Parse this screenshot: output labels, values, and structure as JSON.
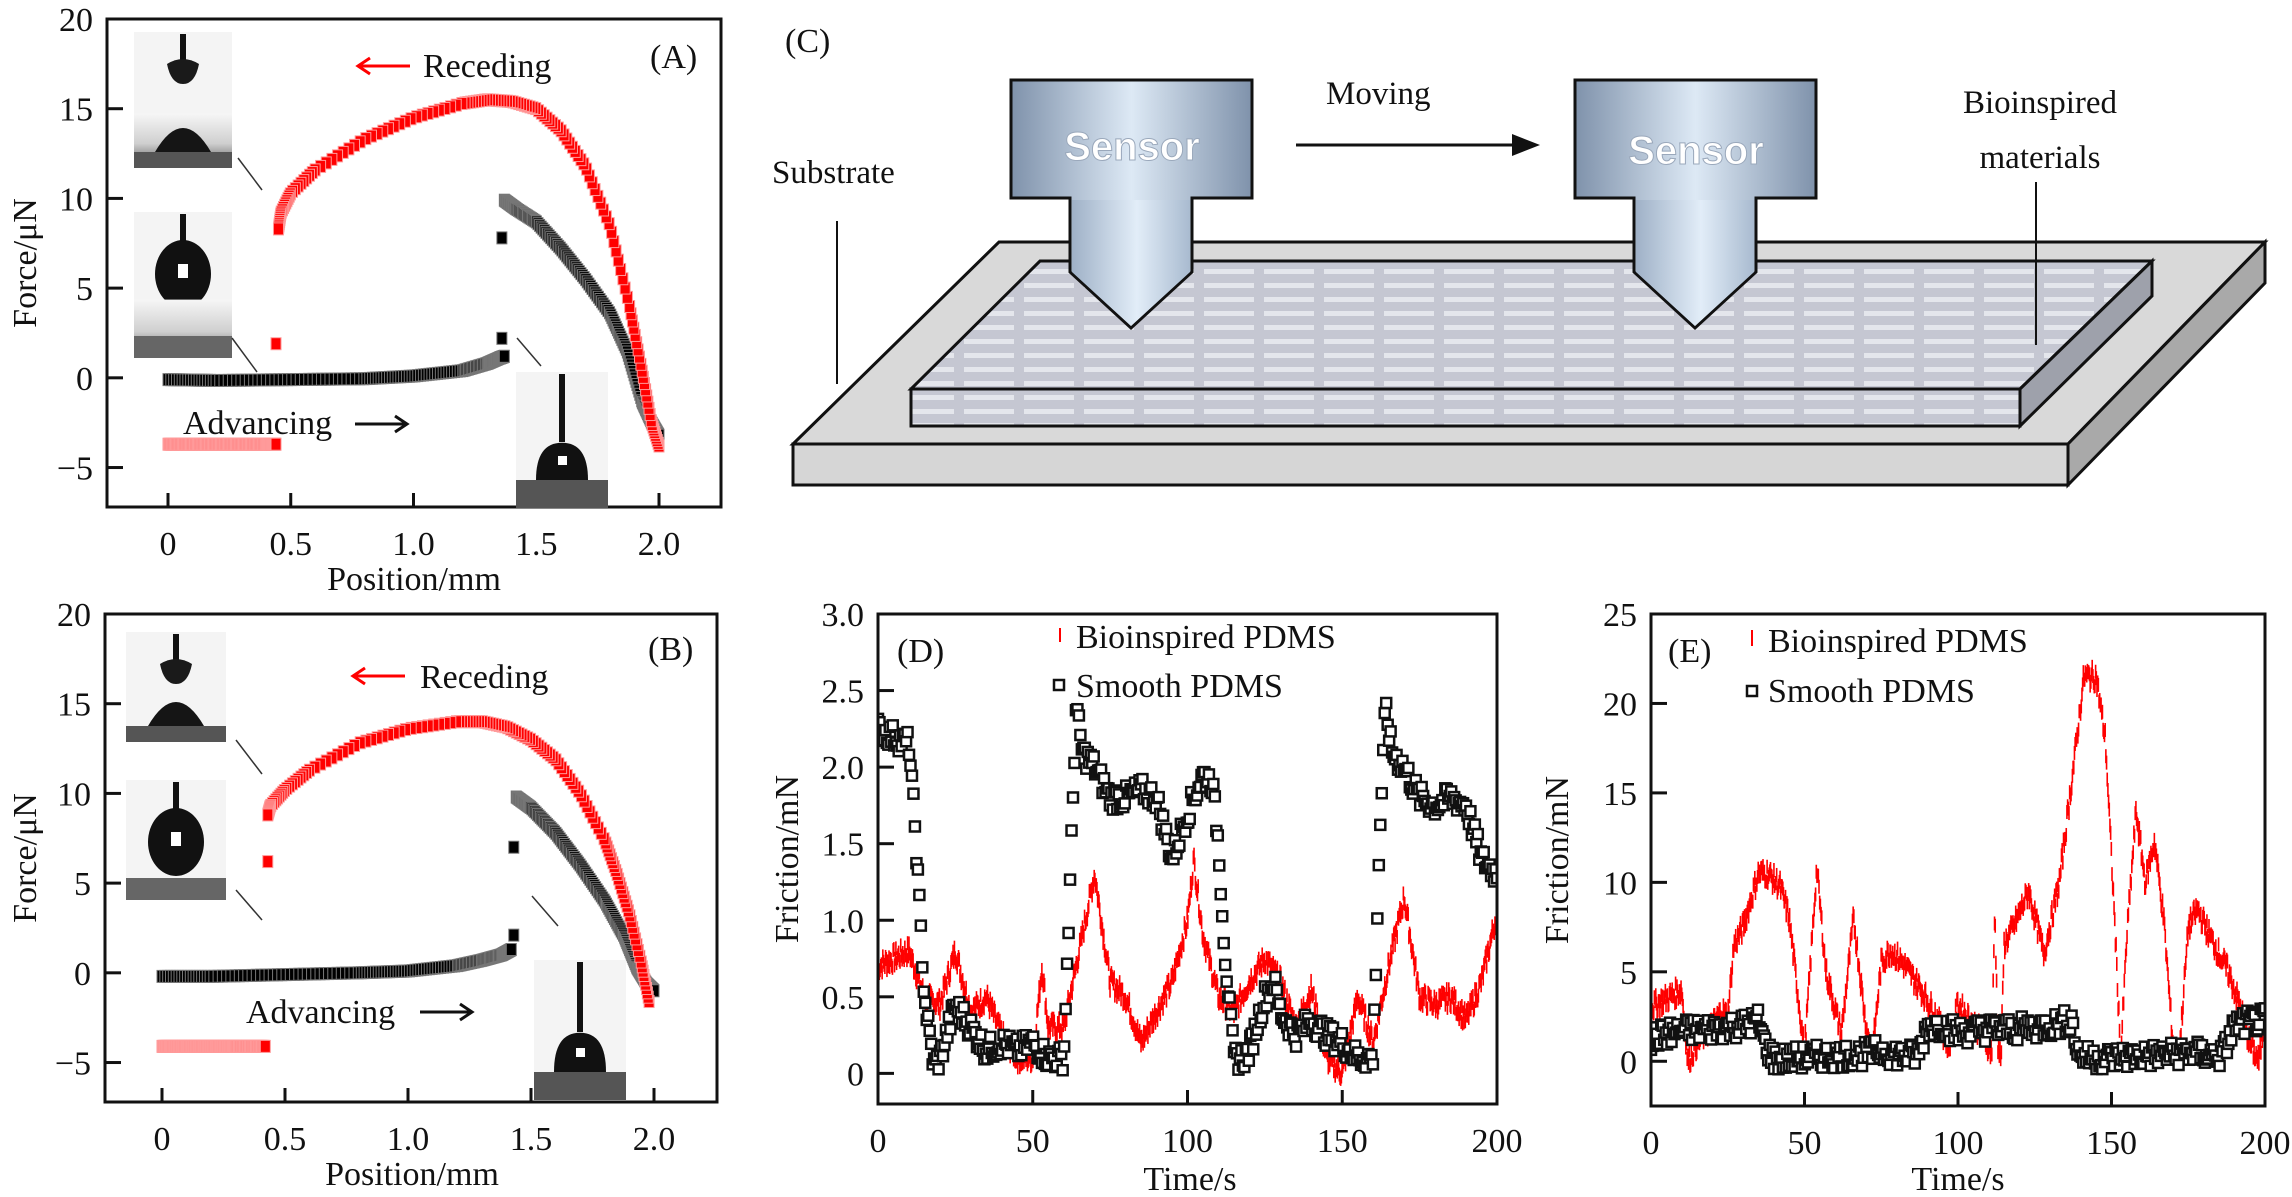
{
  "figure": {
    "panel_labels": {
      "A": "(A)",
      "B": "(B)",
      "C": "(C)",
      "D": "(D)",
      "E": "(E)"
    },
    "diagram_c": {
      "sensor_label": "Sensor",
      "moving_label": "Moving",
      "substrate_label": "Substrate",
      "materials_label_line1": "Bioinspired",
      "materials_label_line2": "materials",
      "colors": {
        "sensor_light": "#dde9f5",
        "sensor_dark": "#7f92ab",
        "substrate": "#d9d9d9",
        "material": "#c9ccd6"
      }
    },
    "colors": {
      "red_series": "#ff0000",
      "black_series": "#000000"
    }
  },
  "chart_data": [
    {
      "id": "A",
      "type": "scatter",
      "title": "(A)",
      "xlabel": "Position/mm",
      "ylabel": "Force/μN",
      "xlim": [
        -0.22,
        2.25
      ],
      "ylim": [
        -7.2,
        20
      ],
      "xticks": [
        "0",
        "0.5",
        "1.0",
        "1.5",
        "2.0"
      ],
      "xtick_values": [
        0,
        0.5,
        1.0,
        1.5,
        2.0
      ],
      "yticks": [
        "−5",
        "0",
        "5",
        "10",
        "15",
        "20"
      ],
      "ytick_values": [
        -5,
        0,
        5,
        10,
        15,
        20
      ],
      "annotations": {
        "receding": "Receding",
        "advancing": "Advancing"
      },
      "series": [
        {
          "name": "Advancing",
          "color": "#000000",
          "x": [
            0,
            0.2,
            0.5,
            0.8,
            1.0,
            1.2,
            1.3,
            1.35,
            1.37
          ],
          "y": [
            -0.1,
            -0.15,
            -0.1,
            -0.05,
            0.1,
            0.4,
            0.8,
            1.1,
            1.2
          ]
        },
        {
          "name": "Advancing (post-jump)",
          "color": "#000000",
          "x": [
            1.37,
            1.42,
            1.5,
            1.6,
            1.7,
            1.8,
            1.87,
            1.93,
            1.97,
            2.0
          ],
          "y": [
            9.9,
            9.4,
            8.7,
            7.2,
            5.5,
            3.6,
            1.5,
            -1.3,
            -2.5,
            -3.2
          ]
        },
        {
          "name": "Receding",
          "color": "#ff0000",
          "x": [
            2.0,
            1.97,
            1.93,
            1.88,
            1.8,
            1.7,
            1.6,
            1.5,
            1.4,
            1.3,
            1.2,
            1.0,
            0.8,
            0.6,
            0.5,
            0.46,
            0.45
          ],
          "y": [
            -3.8,
            -2.5,
            0.5,
            4.0,
            8.5,
            11.8,
            13.8,
            15.0,
            15.4,
            15.5,
            15.3,
            14.5,
            13.3,
            11.6,
            10.3,
            9.2,
            8.3
          ]
        },
        {
          "name": "Receding (detached)",
          "color": "#ff0000",
          "x": [
            0,
            0.1,
            0.2,
            0.3,
            0.4,
            0.44
          ],
          "y": [
            -3.7,
            -3.7,
            -3.7,
            -3.7,
            -3.7,
            -3.7
          ]
        }
      ],
      "isolated_points": [
        {
          "x": 0.44,
          "y": 1.9,
          "color": "#ff0000"
        },
        {
          "x": 1.36,
          "y": 7.8,
          "color": "#000000"
        },
        {
          "x": 1.36,
          "y": 2.2,
          "color": "#000000"
        }
      ]
    },
    {
      "id": "B",
      "type": "scatter",
      "title": "(B)",
      "xlabel": "Position/mm",
      "ylabel": "Force/μN",
      "xlim": [
        -0.22,
        2.25
      ],
      "ylim": [
        -7.2,
        20
      ],
      "xticks": [
        "0",
        "0.5",
        "1.0",
        "1.5",
        "2.0"
      ],
      "xtick_values": [
        0,
        0.5,
        1.0,
        1.5,
        2.0
      ],
      "yticks": [
        "−5",
        "0",
        "5",
        "10",
        "15",
        "20"
      ],
      "ytick_values": [
        -5,
        0,
        5,
        10,
        15,
        20
      ],
      "annotations": {
        "receding": "Receding",
        "advancing": "Advancing"
      },
      "series": [
        {
          "name": "Advancing",
          "color": "#000000",
          "x": [
            0,
            0.2,
            0.5,
            0.8,
            1.0,
            1.2,
            1.3,
            1.38,
            1.42
          ],
          "y": [
            -0.2,
            -0.2,
            -0.1,
            0.0,
            0.1,
            0.4,
            0.7,
            1.0,
            1.3
          ]
        },
        {
          "name": "Advancing (post-jump)",
          "color": "#000000",
          "x": [
            1.44,
            1.5,
            1.6,
            1.7,
            1.8,
            1.88,
            1.93,
            1.97,
            2.0
          ],
          "y": [
            9.8,
            9.2,
            7.8,
            6.0,
            4.0,
            2.0,
            0.3,
            -0.6,
            -1.0
          ]
        },
        {
          "name": "Receding",
          "color": "#ff0000",
          "x": [
            1.98,
            1.95,
            1.9,
            1.85,
            1.8,
            1.7,
            1.6,
            1.5,
            1.4,
            1.3,
            1.2,
            1.0,
            0.8,
            0.6,
            0.5,
            0.44,
            0.43
          ],
          "y": [
            -1.6,
            0.5,
            3.3,
            5.5,
            7.4,
            10.0,
            11.9,
            13.0,
            13.7,
            14.0,
            14.0,
            13.6,
            12.8,
            11.3,
            10.2,
            9.3,
            8.8
          ]
        },
        {
          "name": "Receding (detached)",
          "color": "#ff0000",
          "x": [
            0,
            0.1,
            0.2,
            0.3,
            0.42
          ],
          "y": [
            -4.1,
            -4.1,
            -4.1,
            -4.1,
            -4.1
          ]
        }
      ],
      "isolated_points": [
        {
          "x": 0.43,
          "y": 6.2,
          "color": "#ff0000"
        },
        {
          "x": 1.43,
          "y": 7.0,
          "color": "#000000"
        },
        {
          "x": 1.43,
          "y": 2.1,
          "color": "#000000"
        }
      ]
    },
    {
      "id": "D",
      "type": "line",
      "title": "(D)",
      "xlabel": "Time/s",
      "ylabel": "Friction/mN",
      "xlim": [
        0,
        200
      ],
      "ylim": [
        -0.2,
        3.0
      ],
      "xticks": [
        "0",
        "50",
        "100",
        "150",
        "200"
      ],
      "xtick_values": [
        0,
        50,
        100,
        150,
        200
      ],
      "yticks": [
        "0",
        "0.5",
        "1.0",
        "1.5",
        "2.0",
        "2.5",
        "3.0"
      ],
      "ytick_values": [
        0,
        0.5,
        1.0,
        1.5,
        2.0,
        2.5,
        3.0
      ],
      "legend": {
        "position": "top-center",
        "entries": [
          "Bioinspired PDMS",
          "Smooth PDMS"
        ]
      },
      "series": [
        {
          "name": "Bioinspired PDMS",
          "color": "#ff0000",
          "marker": "tick",
          "x": [
            0,
            5,
            10,
            15,
            20,
            25,
            30,
            35,
            40,
            45,
            50,
            53,
            55,
            60,
            65,
            70,
            75,
            80,
            85,
            90,
            95,
            100,
            102,
            105,
            110,
            115,
            120,
            125,
            130,
            135,
            140,
            145,
            150,
            155,
            160,
            165,
            170,
            175,
            180,
            185,
            190,
            195,
            200
          ],
          "y": [
            0.7,
            0.75,
            0.8,
            0.5,
            0.45,
            0.8,
            0.4,
            0.5,
            0.25,
            0.1,
            0.1,
            0.7,
            0.3,
            0.3,
            0.8,
            1.3,
            0.6,
            0.5,
            0.2,
            0.4,
            0.6,
            1.0,
            1.4,
            0.9,
            0.5,
            0.4,
            0.6,
            0.75,
            0.6,
            0.3,
            0.55,
            0.1,
            0.0,
            0.5,
            0.2,
            0.7,
            1.15,
            0.5,
            0.45,
            0.5,
            0.35,
            0.6,
            1.05
          ]
        },
        {
          "name": "Smooth PDMS",
          "color": "#000000",
          "marker": "open-square",
          "x": [
            0,
            5,
            10,
            12,
            15,
            18,
            20,
            25,
            30,
            35,
            40,
            45,
            50,
            55,
            60,
            62,
            64,
            66,
            70,
            75,
            80,
            85,
            90,
            95,
            100,
            105,
            108,
            110,
            112,
            115,
            118,
            120,
            125,
            128,
            130,
            135,
            140,
            145,
            150,
            155,
            160,
            162,
            164,
            166,
            170,
            175,
            180,
            185,
            190,
            195,
            200
          ],
          "y": [
            2.25,
            2.2,
            2.15,
            1.6,
            0.5,
            0.05,
            0.1,
            0.45,
            0.3,
            0.15,
            0.2,
            0.15,
            0.2,
            0.1,
            0.1,
            1.2,
            2.4,
            2.1,
            2.0,
            1.8,
            1.8,
            1.85,
            1.8,
            1.4,
            1.7,
            1.95,
            1.9,
            1.5,
            0.8,
            0.1,
            0.1,
            0.15,
            0.5,
            0.6,
            0.4,
            0.25,
            0.35,
            0.25,
            0.2,
            0.1,
            0.1,
            1.5,
            2.4,
            2.1,
            2.0,
            1.8,
            1.75,
            1.8,
            1.75,
            1.4,
            1.3
          ]
        }
      ]
    },
    {
      "id": "E",
      "type": "line",
      "title": "(E)",
      "xlabel": "Time/s",
      "ylabel": "Friction/mN",
      "xlim": [
        0,
        200
      ],
      "ylim": [
        -2.5,
        25
      ],
      "xticks": [
        "0",
        "50",
        "100",
        "150",
        "200"
      ],
      "xtick_values": [
        0,
        50,
        100,
        150,
        200
      ],
      "yticks": [
        "0",
        "5",
        "10",
        "15",
        "20",
        "25"
      ],
      "ytick_values": [
        0,
        5,
        10,
        15,
        20,
        25
      ],
      "legend": {
        "position": "top-left",
        "entries": [
          "Bioinspired PDMS",
          "Smooth PDMS"
        ]
      },
      "series": [
        {
          "name": "Bioinspired PDMS",
          "color": "#ff0000",
          "marker": "tick",
          "x": [
            0,
            10,
            11,
            12,
            15,
            20,
            23,
            25,
            27,
            30,
            35,
            38,
            42,
            45,
            50,
            54,
            57,
            62,
            66,
            70,
            72,
            75,
            78,
            82,
            88,
            93,
            97,
            100,
            103,
            108,
            111,
            112,
            113,
            114,
            115,
            118,
            123,
            128,
            133,
            138,
            141,
            145,
            148,
            151,
            153,
            155,
            158,
            161,
            164,
            167,
            170,
            172,
            175,
            178,
            182,
            188,
            192,
            195,
            198,
            200
          ],
          "y": [
            3.0,
            4.0,
            2.0,
            0.0,
            1.0,
            2.0,
            2.8,
            2.5,
            6.5,
            7.5,
            10.5,
            10.5,
            9.8,
            8.0,
            0.5,
            10.8,
            5.0,
            1.5,
            8.0,
            2.0,
            0.2,
            5.5,
            6.2,
            5.5,
            4.0,
            2.5,
            0.8,
            3.2,
            2.5,
            1.5,
            0.5,
            8.5,
            1.0,
            0.0,
            6.5,
            7.5,
            9.5,
            6.0,
            10.0,
            17.0,
            21.5,
            21.5,
            18.0,
            8.0,
            0.2,
            7.0,
            14.0,
            10.0,
            12.3,
            8.0,
            1.0,
            0.2,
            7.5,
            8.5,
            7.0,
            5.0,
            3.0,
            1.0,
            0.0,
            2.5
          ]
        },
        {
          "name": "Smooth PDMS",
          "color": "#000000",
          "marker": "open-square",
          "x": [
            0,
            5,
            10,
            20,
            30,
            35,
            37,
            40,
            50,
            60,
            70,
            75,
            82,
            87,
            90,
            95,
            100,
            110,
            120,
            130,
            137,
            139,
            142,
            150,
            160,
            170,
            175,
            180,
            186,
            190,
            195,
            200
          ],
          "y": [
            1.3,
            1.5,
            1.7,
            1.8,
            2.0,
            2.3,
            1.0,
            0.1,
            0.2,
            0.3,
            0.4,
            0.6,
            0.3,
            0.3,
            2.0,
            2.0,
            1.6,
            1.8,
            1.8,
            2.0,
            2.3,
            0.5,
            0.2,
            0.2,
            0.3,
            0.4,
            0.5,
            0.4,
            0.3,
            2.0,
            2.2,
            2.3
          ]
        }
      ]
    }
  ]
}
